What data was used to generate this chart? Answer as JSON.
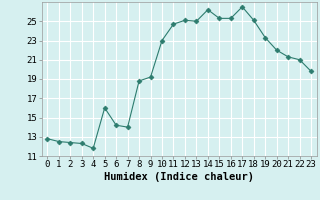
{
  "x": [
    0,
    1,
    2,
    3,
    4,
    5,
    6,
    7,
    8,
    9,
    10,
    11,
    12,
    13,
    14,
    15,
    16,
    17,
    18,
    19,
    20,
    21,
    22,
    23
  ],
  "y": [
    12.8,
    12.5,
    12.4,
    12.3,
    11.8,
    16.0,
    14.2,
    14.0,
    18.8,
    19.2,
    23.0,
    24.7,
    25.1,
    25.0,
    26.2,
    25.3,
    25.3,
    26.5,
    25.1,
    23.3,
    22.0,
    21.3,
    21.0,
    19.8
  ],
  "line_color": "#2d7c6e",
  "marker": "D",
  "marker_size": 2.5,
  "bg_color": "#d6f0f0",
  "grid_color": "#ffffff",
  "xlabel": "Humidex (Indice chaleur)",
  "xlabel_fontsize": 7.5,
  "xlim": [
    -0.5,
    23.5
  ],
  "ylim": [
    11,
    27
  ],
  "yticks": [
    11,
    13,
    15,
    17,
    19,
    21,
    23,
    25
  ],
  "xticks": [
    0,
    1,
    2,
    3,
    4,
    5,
    6,
    7,
    8,
    9,
    10,
    11,
    12,
    13,
    14,
    15,
    16,
    17,
    18,
    19,
    20,
    21,
    22,
    23
  ],
  "tick_fontsize": 6.5
}
